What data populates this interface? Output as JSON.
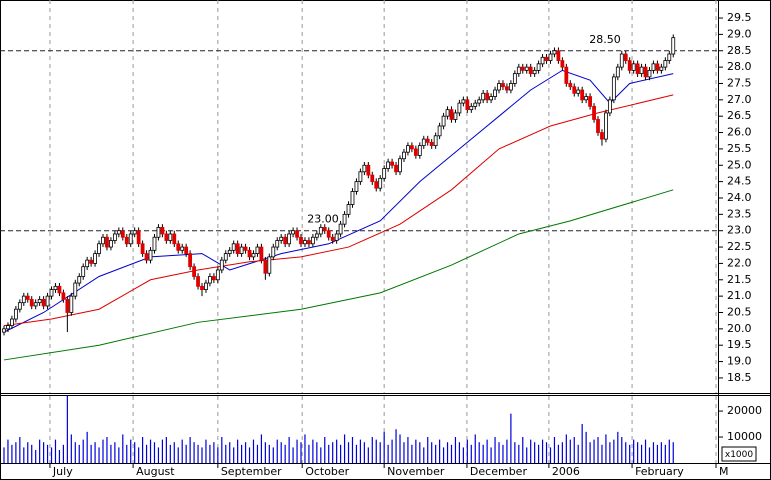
{
  "chart_data": [
    {
      "type": "candlestick",
      "xlim": [
        -1.01,
        180.3
      ],
      "ylim": [
        18.07,
        29.99
      ],
      "yticks": [
        29.5,
        {
          "value": 29,
          "label": "29.0"
        },
        28.5,
        {
          "value": 28,
          "label": "28.0"
        },
        27.5,
        {
          "value": 27,
          "label": "27.0"
        },
        26.5,
        {
          "value": 26,
          "label": "26.0"
        },
        25.5,
        {
          "value": 25,
          "label": "25.0"
        },
        24.5,
        {
          "value": 24,
          "label": "24.0"
        },
        23.5,
        {
          "value": 23,
          "label": "23.0"
        },
        22.5,
        {
          "value": 22,
          "label": "22.0"
        },
        21.5,
        {
          "value": 21,
          "label": "21.0"
        },
        20.5,
        {
          "value": 20,
          "label": "20.0"
        },
        19.5,
        {
          "value": 19,
          "label": "19.0"
        },
        18.5
      ],
      "xticks": [
        {
          "value": 11.6,
          "label": "July"
        },
        {
          "value": 32.6,
          "label": "August"
        },
        {
          "value": 54.0,
          "label": "September"
        },
        {
          "value": 75.3,
          "label": "October"
        },
        {
          "value": 96.0,
          "label": "November"
        },
        {
          "value": 116.9,
          "label": "December"
        },
        {
          "value": 137.6,
          "label": "2006"
        },
        {
          "value": 158.6,
          "label": "February"
        },
        {
          "value": 179.8,
          "label": "M"
        }
      ],
      "up_color": "#ffffff",
      "down_color": "#e00000",
      "open": [
        19.9,
        20.0,
        20.1,
        20.3,
        20.6,
        20.8,
        21.0,
        20.9,
        20.7,
        20.8,
        20.9,
        20.7,
        21.0,
        21.2,
        21.3,
        21.1,
        20.9,
        20.5,
        21.0,
        21.4,
        21.6,
        21.9,
        22.1,
        22.0,
        22.3,
        22.6,
        22.8,
        22.5,
        22.7,
        22.9,
        23.0,
        22.8,
        22.6,
        22.9,
        23.0,
        22.6,
        22.3,
        22.1,
        22.4,
        22.8,
        23.1,
        22.9,
        22.7,
        22.9,
        22.6,
        22.4,
        22.5,
        22.3,
        21.9,
        21.6,
        21.3,
        21.2,
        21.4,
        21.6,
        21.5,
        21.8,
        22.1,
        22.3,
        22.4,
        22.6,
        22.3,
        22.5,
        22.4,
        22.2,
        22.3,
        22.5,
        22.1,
        21.7,
        22.2,
        22.5,
        22.7,
        22.8,
        22.6,
        22.9,
        23.0,
        22.8,
        22.6,
        22.7,
        22.6,
        22.8,
        22.9,
        23.1,
        23.0,
        22.8,
        22.7,
        22.9,
        23.2,
        23.5,
        23.8,
        24.2,
        24.5,
        24.8,
        25.0,
        24.7,
        24.5,
        24.3,
        24.6,
        24.9,
        25.1,
        25.0,
        24.8,
        25.2,
        25.4,
        25.6,
        25.5,
        25.3,
        25.6,
        25.8,
        25.7,
        25.6,
        25.9,
        26.2,
        26.5,
        26.7,
        26.4,
        26.6,
        26.9,
        27.0,
        26.7,
        26.8,
        26.9,
        27.0,
        27.2,
        27.0,
        27.1,
        27.3,
        27.5,
        27.4,
        27.3,
        27.5,
        27.8,
        28.0,
        27.9,
        28.0,
        27.8,
        27.9,
        28.1,
        28.3,
        28.2,
        28.4,
        28.5,
        28.2,
        28.0,
        27.5,
        27.4,
        27.2,
        27.3,
        27.0,
        27.1,
        26.8,
        26.4,
        26.0,
        25.8,
        26.6,
        27.0,
        27.7,
        28.0,
        28.4,
        28.2,
        27.9,
        28.1,
        27.8,
        28.0,
        27.7,
        27.9,
        28.1,
        27.9,
        28.0,
        28.2,
        28.4
      ],
      "high": [
        20.1,
        20.2,
        20.4,
        20.7,
        20.9,
        21.1,
        21.1,
        21.0,
        20.9,
        21.0,
        21.0,
        21.1,
        21.3,
        21.4,
        21.4,
        21.2,
        21.0,
        21.1,
        21.5,
        21.7,
        22.0,
        22.2,
        22.2,
        22.4,
        22.7,
        22.9,
        22.9,
        22.8,
        23.0,
        23.1,
        23.1,
        22.9,
        23.0,
        23.1,
        23.1,
        22.7,
        22.4,
        22.5,
        22.9,
        23.2,
        23.2,
        23.0,
        23.0,
        23.0,
        22.7,
        22.6,
        22.6,
        22.4,
        22.0,
        21.7,
        21.4,
        21.5,
        21.7,
        21.7,
        21.9,
        22.2,
        22.4,
        22.5,
        22.7,
        22.7,
        22.6,
        22.6,
        22.5,
        22.4,
        22.6,
        22.6,
        22.2,
        22.3,
        22.6,
        22.8,
        22.9,
        22.9,
        23.0,
        23.1,
        23.1,
        22.9,
        22.8,
        22.8,
        22.9,
        23.0,
        23.2,
        23.2,
        23.1,
        22.9,
        23.0,
        23.3,
        23.6,
        23.9,
        24.3,
        24.6,
        24.9,
        25.1,
        25.1,
        24.8,
        24.6,
        24.7,
        25.0,
        25.2,
        25.2,
        25.1,
        25.3,
        25.5,
        25.7,
        25.7,
        25.6,
        25.7,
        25.9,
        25.9,
        25.8,
        26.0,
        26.3,
        26.6,
        26.8,
        26.8,
        26.7,
        27.0,
        27.1,
        27.1,
        26.9,
        27.0,
        27.1,
        27.3,
        27.3,
        27.2,
        27.4,
        27.6,
        27.6,
        27.5,
        27.6,
        27.9,
        28.1,
        28.1,
        28.1,
        28.1,
        28.0,
        28.2,
        28.4,
        28.4,
        28.5,
        28.6,
        28.6,
        28.3,
        28.1,
        27.6,
        27.5,
        27.4,
        27.4,
        27.2,
        27.2,
        26.9,
        26.5,
        26.1,
        26.7,
        27.1,
        27.8,
        28.1,
        28.5,
        28.5,
        28.3,
        28.2,
        28.2,
        28.1,
        28.1,
        28.0,
        28.2,
        28.2,
        28.1,
        28.3,
        28.5,
        29.0
      ],
      "low": [
        19.8,
        19.9,
        20.0,
        20.2,
        20.5,
        20.7,
        20.8,
        20.6,
        20.6,
        20.7,
        20.6,
        20.6,
        20.9,
        21.1,
        21.0,
        20.8,
        19.9,
        20.4,
        20.9,
        21.3,
        21.5,
        21.8,
        21.9,
        21.9,
        22.2,
        22.5,
        22.4,
        22.4,
        22.6,
        22.8,
        22.7,
        22.5,
        22.5,
        22.8,
        22.5,
        22.2,
        22.0,
        22.0,
        22.3,
        22.7,
        22.8,
        22.6,
        22.6,
        22.5,
        22.3,
        22.3,
        22.2,
        21.8,
        21.5,
        21.2,
        21.0,
        21.1,
        21.3,
        21.4,
        21.4,
        21.7,
        22.0,
        22.2,
        22.3,
        22.2,
        22.2,
        22.3,
        22.1,
        22.1,
        22.2,
        22.0,
        21.5,
        21.6,
        22.1,
        22.4,
        22.6,
        22.5,
        22.5,
        22.8,
        22.7,
        22.5,
        22.5,
        22.5,
        22.5,
        22.7,
        22.8,
        22.9,
        22.7,
        22.6,
        22.6,
        22.8,
        23.1,
        23.4,
        23.7,
        24.1,
        24.4,
        24.7,
        24.6,
        24.4,
        24.2,
        24.2,
        24.5,
        24.8,
        24.9,
        24.7,
        24.7,
        25.1,
        25.3,
        25.4,
        25.2,
        25.2,
        25.5,
        25.6,
        25.5,
        25.5,
        25.8,
        26.1,
        26.4,
        26.3,
        26.3,
        26.5,
        26.8,
        26.6,
        26.6,
        26.7,
        26.8,
        26.9,
        26.9,
        26.9,
        27.0,
        27.2,
        27.3,
        27.2,
        27.2,
        27.4,
        27.7,
        27.8,
        27.8,
        27.7,
        27.7,
        27.8,
        28.0,
        28.1,
        28.1,
        28.3,
        28.1,
        27.9,
        27.4,
        27.3,
        27.1,
        27.1,
        26.9,
        26.9,
        26.7,
        26.3,
        25.9,
        25.6,
        25.7,
        26.5,
        26.9,
        27.6,
        27.9,
        28.1,
        27.8,
        27.8,
        27.7,
        27.7,
        27.6,
        27.6,
        27.8,
        27.8,
        27.8,
        27.9,
        28.1,
        28.3
      ],
      "close": [
        20.0,
        20.1,
        20.3,
        20.6,
        20.8,
        21.0,
        20.9,
        20.7,
        20.8,
        20.9,
        20.7,
        21.0,
        21.2,
        21.3,
        21.1,
        20.9,
        20.5,
        21.0,
        21.4,
        21.6,
        21.9,
        22.1,
        22.0,
        22.3,
        22.6,
        22.8,
        22.5,
        22.7,
        22.9,
        23.0,
        22.8,
        22.6,
        22.9,
        23.0,
        22.6,
        22.3,
        22.1,
        22.4,
        22.8,
        23.1,
        22.9,
        22.7,
        22.9,
        22.6,
        22.4,
        22.5,
        22.3,
        21.9,
        21.6,
        21.3,
        21.2,
        21.4,
        21.6,
        21.5,
        21.8,
        22.1,
        22.3,
        22.4,
        22.6,
        22.3,
        22.5,
        22.4,
        22.2,
        22.3,
        22.5,
        22.1,
        21.7,
        22.2,
        22.5,
        22.7,
        22.8,
        22.6,
        22.9,
        23.0,
        22.8,
        22.6,
        22.7,
        22.6,
        22.8,
        22.9,
        23.1,
        23.0,
        22.8,
        22.7,
        22.9,
        23.2,
        23.5,
        23.8,
        24.2,
        24.5,
        24.8,
        25.0,
        24.7,
        24.5,
        24.3,
        24.6,
        24.9,
        25.1,
        25.0,
        24.8,
        25.2,
        25.4,
        25.6,
        25.5,
        25.3,
        25.6,
        25.8,
        25.7,
        25.6,
        25.9,
        26.2,
        26.5,
        26.7,
        26.4,
        26.6,
        26.9,
        27.0,
        26.7,
        26.8,
        26.9,
        27.0,
        27.2,
        27.0,
        27.1,
        27.3,
        27.5,
        27.4,
        27.3,
        27.5,
        27.8,
        28.0,
        27.9,
        28.0,
        27.8,
        27.9,
        28.1,
        28.3,
        28.2,
        28.4,
        28.5,
        28.2,
        28.0,
        27.5,
        27.4,
        27.2,
        27.3,
        27.0,
        27.1,
        26.8,
        26.4,
        26.0,
        25.8,
        26.6,
        27.0,
        27.7,
        28.0,
        28.4,
        28.2,
        27.9,
        28.1,
        27.8,
        28.0,
        27.7,
        27.9,
        28.1,
        27.9,
        28.0,
        28.2,
        28.4,
        28.9
      ],
      "lines": [
        {
          "color": "#0000cc",
          "x": [
            0,
            10,
            24,
            37,
            50,
            57,
            70,
            82,
            95,
            105,
            115,
            125,
            133,
            141,
            148,
            153,
            158,
            169
          ],
          "values": [
            19.9,
            20.5,
            21.6,
            22.2,
            22.3,
            21.8,
            22.3,
            22.6,
            23.3,
            24.5,
            25.5,
            26.5,
            27.3,
            27.9,
            27.6,
            26.9,
            27.5,
            27.8
          ]
        },
        {
          "color": "#dd0000",
          "x": [
            0,
            12,
            24,
            37,
            49,
            62,
            75,
            87,
            100,
            113,
            125,
            138,
            150,
            169
          ],
          "values": [
            20.1,
            20.3,
            20.6,
            21.5,
            21.8,
            22.05,
            22.2,
            22.5,
            23.2,
            24.25,
            25.5,
            26.2,
            26.6,
            27.15
          ]
        },
        {
          "color": "#007700",
          "x": [
            0,
            24,
            49,
            75,
            95,
            113,
            130,
            143,
            169
          ],
          "values": [
            19.05,
            19.5,
            20.2,
            20.6,
            21.1,
            21.95,
            22.9,
            23.3,
            24.25
          ]
        }
      ],
      "annotations": [
        {
          "value": 28.5,
          "label": "28.50"
        },
        {
          "value": 23,
          "label": "23.00"
        }
      ]
    },
    {
      "type": "bar",
      "color": "#0000dd",
      "ylim": [
        0,
        25800
      ],
      "yticks": [
        20000,
        10000
      ],
      "unit_label": "x1000",
      "values": [
        6000,
        9000,
        7000,
        8000,
        10000,
        6000,
        8000,
        7000,
        5000,
        9000,
        8000,
        7000,
        6000,
        9000,
        5000,
        7000,
        26000,
        11000,
        8000,
        7000,
        9000,
        12000,
        7000,
        8000,
        6000,
        9000,
        10000,
        7000,
        8000,
        6000,
        11000,
        7000,
        9000,
        8000,
        6000,
        10000,
        7000,
        9000,
        8000,
        6000,
        9000,
        10000,
        7000,
        8000,
        6000,
        9000,
        7000,
        10000,
        8000,
        7000,
        6000,
        9000,
        7000,
        8000,
        6000,
        10000,
        7000,
        8000,
        6000,
        9000,
        7000,
        8000,
        6000,
        9000,
        7000,
        11000,
        8000,
        7000,
        6000,
        9000,
        8000,
        7000,
        10000,
        6000,
        9000,
        8000,
        11000,
        7000,
        9000,
        8000,
        6000,
        10000,
        7000,
        8000,
        9000,
        7000,
        11000,
        8000,
        10000,
        7000,
        9000,
        8000,
        6000,
        10000,
        9000,
        8000,
        12000,
        7000,
        9000,
        13000,
        11000,
        8000,
        10000,
        7000,
        9000,
        8000,
        6000,
        10000,
        8000,
        7000,
        9000,
        6000,
        8000,
        7000,
        10000,
        8000,
        6000,
        9000,
        7000,
        11000,
        8000,
        7000,
        9000,
        6000,
        10000,
        8000,
        7000,
        9000,
        19000,
        8000,
        7000,
        10000,
        6000,
        9000,
        8000,
        7000,
        9000,
        8000,
        6000,
        10000,
        7000,
        8000,
        11000,
        9000,
        10000,
        7000,
        15000,
        12000,
        8000,
        9000,
        10000,
        7000,
        11000,
        8000,
        9000,
        12000,
        10000,
        8000,
        7000,
        9000,
        8000,
        7000,
        9000,
        6000,
        8000,
        7000,
        8000,
        7000,
        9000,
        8000
      ]
    }
  ]
}
